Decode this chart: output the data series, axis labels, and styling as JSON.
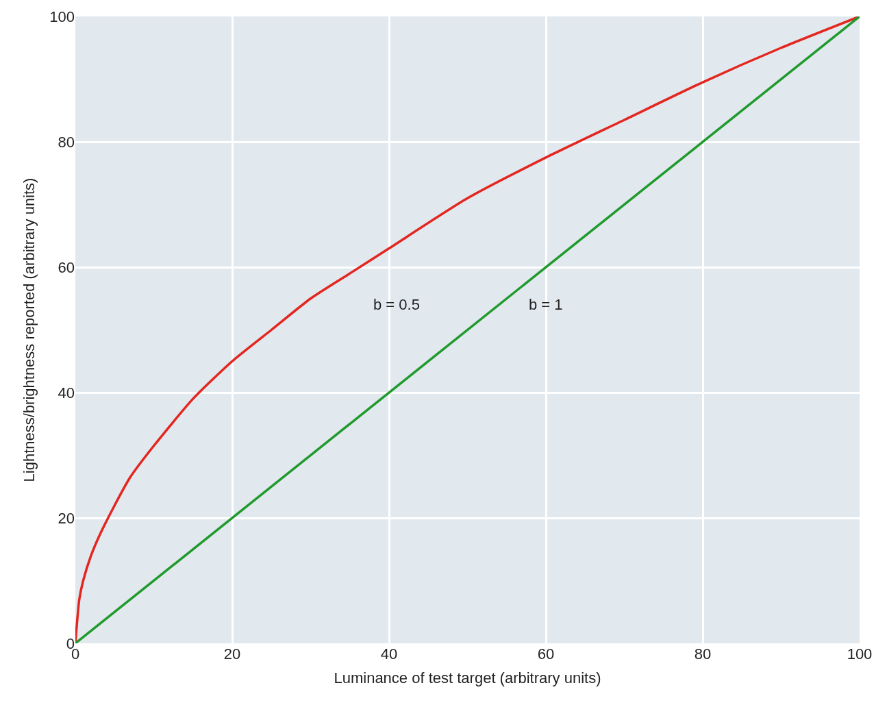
{
  "chart_data": {
    "type": "line",
    "xlabel": "Luminance of test target (arbitrary units)",
    "ylabel": "Lightness/brightness reported (arbitrary units)",
    "series": [
      {
        "color": "#e3261f",
        "x": [
          0,
          0.5,
          1,
          2,
          3,
          5,
          7,
          10,
          15,
          20,
          25,
          30,
          35,
          40,
          50,
          60,
          70,
          80,
          90,
          100
        ],
        "values": [
          0,
          7,
          10,
          14,
          17,
          22,
          26.5,
          31.5,
          39,
          45,
          50,
          55,
          59,
          63,
          71,
          77.5,
          83.5,
          89.5,
          95,
          100
        ]
      },
      {
        "color": "#1f9a2b",
        "x": [
          0,
          100
        ],
        "values": [
          0,
          100
        ]
      }
    ],
    "annotations": [
      "b = 0.5",
      "b = 1"
    ],
    "xlim": [
      0,
      100
    ],
    "ylim": [
      0,
      100
    ],
    "xticks": [
      0,
      20,
      40,
      60,
      80,
      100
    ],
    "yticks": [
      0,
      20,
      40,
      60,
      80,
      100
    ],
    "grid": true,
    "marker": "none",
    "line_style": "solid"
  }
}
